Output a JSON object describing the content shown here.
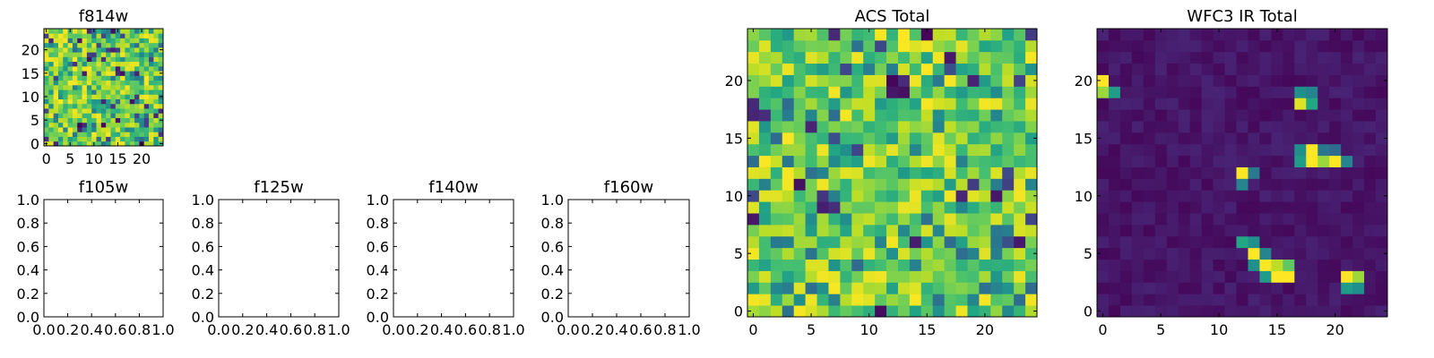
{
  "figure": {
    "background": "#ffffff",
    "panel_count": 7
  },
  "chart_data": [
    {
      "id": "f814w",
      "type": "heatmap",
      "title": "f814w",
      "xlabel": "",
      "ylabel": "",
      "grid_size": [
        25,
        25
      ],
      "xlim": [
        -0.5,
        24.5
      ],
      "ylim": [
        -0.5,
        24.5
      ],
      "xticks": [
        0,
        5,
        10,
        15,
        20
      ],
      "yticks": [
        0,
        5,
        10,
        15,
        20
      ],
      "colormap": "viridis",
      "pixel_values": "random noise, mostly high values (green-yellow) with scattered low pixels"
    },
    {
      "id": "f105w",
      "type": "heatmap",
      "title": "f105w",
      "xlabel": "",
      "ylabel": "",
      "empty": true,
      "xlim": [
        0,
        1
      ],
      "ylim": [
        0,
        1
      ],
      "xticks": [
        0.0,
        0.2,
        0.4,
        0.6,
        0.8,
        1.0
      ],
      "yticks": [
        0.0,
        0.2,
        0.4,
        0.6,
        0.8,
        1.0
      ]
    },
    {
      "id": "f125w",
      "type": "heatmap",
      "title": "f125w",
      "xlabel": "",
      "ylabel": "",
      "empty": true,
      "xlim": [
        0,
        1
      ],
      "ylim": [
        0,
        1
      ],
      "xticks": [
        0.0,
        0.2,
        0.4,
        0.6,
        0.8,
        1.0
      ],
      "yticks": [
        0.0,
        0.2,
        0.4,
        0.6,
        0.8,
        1.0
      ]
    },
    {
      "id": "f140w",
      "type": "heatmap",
      "title": "f140w",
      "xlabel": "",
      "ylabel": "",
      "empty": true,
      "xlim": [
        0,
        1
      ],
      "ylim": [
        0,
        1
      ],
      "xticks": [
        0.0,
        0.2,
        0.4,
        0.6,
        0.8,
        1.0
      ],
      "yticks": [
        0.0,
        0.2,
        0.4,
        0.6,
        0.8,
        1.0
      ]
    },
    {
      "id": "f160w",
      "type": "heatmap",
      "title": "f160w",
      "xlabel": "",
      "ylabel": "",
      "empty": true,
      "xlim": [
        0,
        1
      ],
      "ylim": [
        0,
        1
      ],
      "xticks": [
        0.0,
        0.2,
        0.4,
        0.6,
        0.8,
        1.0
      ],
      "yticks": [
        0.0,
        0.2,
        0.4,
        0.6,
        0.8,
        1.0
      ]
    },
    {
      "id": "acs_total",
      "type": "heatmap",
      "title": "ACS Total",
      "xlabel": "",
      "ylabel": "",
      "grid_size": [
        25,
        25
      ],
      "xlim": [
        -0.5,
        24.5
      ],
      "ylim": [
        -0.5,
        24.5
      ],
      "xticks": [
        0,
        5,
        10,
        15,
        20
      ],
      "yticks": [
        0,
        5,
        10,
        15,
        20
      ],
      "colormap": "viridis",
      "pixel_values": "random noise, mostly high values (green-yellow) with scattered low pixels"
    },
    {
      "id": "wfc3_ir_total",
      "type": "heatmap",
      "title": "WFC3 IR Total",
      "xlabel": "",
      "ylabel": "",
      "grid_size": [
        25,
        25
      ],
      "xlim": [
        -0.5,
        24.5
      ],
      "ylim": [
        -0.5,
        24.5
      ],
      "xticks": [
        0,
        5,
        10,
        15,
        20
      ],
      "yticks": [
        0,
        5,
        10,
        15,
        20
      ],
      "colormap": "viridis",
      "background_level": 0.06,
      "hot_pixels": [
        {
          "x": 0,
          "y": 20,
          "v": 1.0
        },
        {
          "x": 0,
          "y": 19,
          "v": 0.85
        },
        {
          "x": 1,
          "y": 19,
          "v": 0.55
        },
        {
          "x": 17,
          "y": 19,
          "v": 0.5
        },
        {
          "x": 18,
          "y": 19,
          "v": 0.45
        },
        {
          "x": 17,
          "y": 18,
          "v": 0.95
        },
        {
          "x": 18,
          "y": 18,
          "v": 0.6
        },
        {
          "x": 18,
          "y": 14,
          "v": 1.0
        },
        {
          "x": 17,
          "y": 14,
          "v": 0.5
        },
        {
          "x": 19,
          "y": 14,
          "v": 0.4
        },
        {
          "x": 20,
          "y": 14,
          "v": 0.35
        },
        {
          "x": 17,
          "y": 13,
          "v": 0.55
        },
        {
          "x": 18,
          "y": 13,
          "v": 1.0
        },
        {
          "x": 19,
          "y": 13,
          "v": 0.85
        },
        {
          "x": 20,
          "y": 13,
          "v": 1.0
        },
        {
          "x": 21,
          "y": 13,
          "v": 0.45
        },
        {
          "x": 12,
          "y": 12,
          "v": 1.0
        },
        {
          "x": 13,
          "y": 12,
          "v": 0.4
        },
        {
          "x": 12,
          "y": 11,
          "v": 0.45
        },
        {
          "x": 12,
          "y": 6,
          "v": 0.6
        },
        {
          "x": 13,
          "y": 6,
          "v": 0.5
        },
        {
          "x": 13,
          "y": 5,
          "v": 1.0
        },
        {
          "x": 14,
          "y": 5,
          "v": 0.45
        },
        {
          "x": 13,
          "y": 4,
          "v": 0.5
        },
        {
          "x": 14,
          "y": 4,
          "v": 1.0
        },
        {
          "x": 15,
          "y": 4,
          "v": 0.9
        },
        {
          "x": 16,
          "y": 4,
          "v": 0.75
        },
        {
          "x": 14,
          "y": 3,
          "v": 0.55
        },
        {
          "x": 15,
          "y": 3,
          "v": 1.0
        },
        {
          "x": 16,
          "y": 3,
          "v": 1.0
        },
        {
          "x": 21,
          "y": 3,
          "v": 1.0
        },
        {
          "x": 22,
          "y": 3,
          "v": 0.85
        },
        {
          "x": 21,
          "y": 2,
          "v": 0.55
        },
        {
          "x": 22,
          "y": 2,
          "v": 0.5
        }
      ]
    }
  ]
}
